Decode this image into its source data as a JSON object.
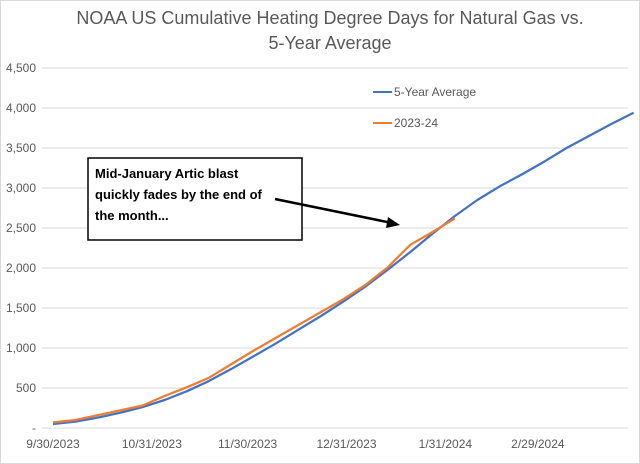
{
  "chart_data": {
    "type": "line",
    "title": [
      "NOAA US Cumulative Heating Degree Days for Natural Gas vs.",
      "5-Year Average"
    ],
    "xlabel": "",
    "ylabel": "",
    "ylim": [
      0,
      4500
    ],
    "yticks": [
      0,
      500,
      1000,
      1500,
      2000,
      2500,
      3000,
      3500,
      4000,
      4500
    ],
    "ytick_labels": [
      "-",
      "500",
      "1,000",
      "1,500",
      "2,000",
      "2,500",
      "3,000",
      "3,500",
      "4,000",
      "4,500"
    ],
    "xlim": [
      "2023-09-30",
      "2024-03-30"
    ],
    "xticks": [
      "2023-09-30",
      "2023-10-31",
      "2023-11-30",
      "2023-12-31",
      "2024-01-31",
      "2024-02-29"
    ],
    "xtick_labels": [
      "9/30/2023",
      "10/31/2023",
      "11/30/2023",
      "12/31/2023",
      "1/31/2024",
      "2/29/2024"
    ],
    "grid": "horizontal",
    "legend_position": "top-right",
    "series": [
      {
        "name": "5-Year Average",
        "color": "#4472C4",
        "x": [
          "2023-09-30",
          "2023-10-07",
          "2023-10-14",
          "2023-10-21",
          "2023-10-28",
          "2023-11-04",
          "2023-11-11",
          "2023-11-18",
          "2023-11-25",
          "2023-12-02",
          "2023-12-09",
          "2023-12-16",
          "2023-12-23",
          "2023-12-30",
          "2024-01-06",
          "2024-01-13",
          "2024-01-20",
          "2024-01-27",
          "2024-02-03",
          "2024-02-10",
          "2024-02-17",
          "2024-02-24",
          "2024-03-02",
          "2024-03-09",
          "2024-03-16",
          "2024-03-23",
          "2024-03-30"
        ],
        "values": [
          50,
          80,
          130,
          190,
          260,
          350,
          460,
          590,
          740,
          900,
          1060,
          1230,
          1400,
          1580,
          1770,
          1980,
          2200,
          2430,
          2650,
          2850,
          3020,
          3170,
          3330,
          3500,
          3650,
          3800,
          3940
        ]
      },
      {
        "name": "2023-24",
        "color": "#ED7D31",
        "x": [
          "2023-09-30",
          "2023-10-07",
          "2023-10-14",
          "2023-10-21",
          "2023-10-28",
          "2023-11-04",
          "2023-11-11",
          "2023-11-18",
          "2023-11-25",
          "2023-12-02",
          "2023-12-09",
          "2023-12-16",
          "2023-12-23",
          "2023-12-30",
          "2024-01-06",
          "2024-01-13",
          "2024-01-20",
          "2024-01-27",
          "2024-02-03"
        ],
        "values": [
          70,
          100,
          160,
          220,
          280,
          400,
          510,
          630,
          800,
          970,
          1130,
          1290,
          1450,
          1610,
          1790,
          2010,
          2290,
          2450,
          2620
        ]
      }
    ],
    "annotation": {
      "lines": [
        "Mid-January  Artic blast",
        "quickly fades by the end of",
        "the month..."
      ]
    }
  }
}
